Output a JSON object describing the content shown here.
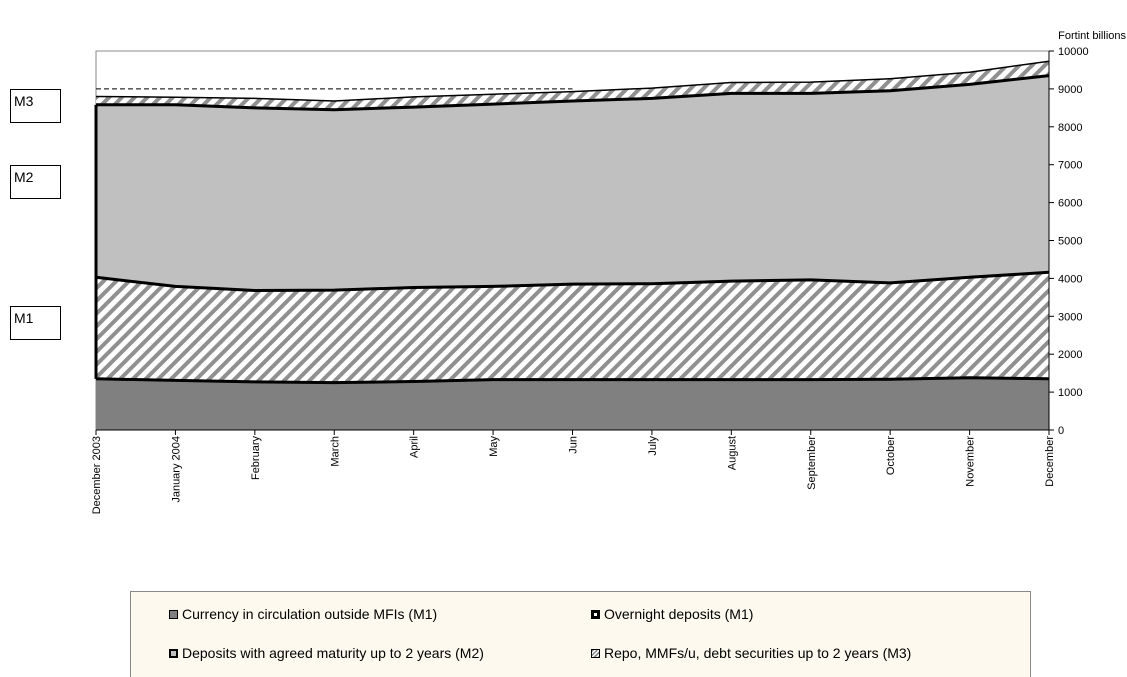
{
  "chart_data": {
    "type": "area",
    "unit_label": "Fortint billions",
    "categories": [
      "December 2003",
      "January 2004",
      "February",
      "March",
      "April",
      "May",
      "Jun",
      "July",
      "August",
      "September",
      "October",
      "November",
      "December"
    ],
    "series": [
      {
        "name": "Currency in circulation outside MFIs (M1)",
        "values": [
          1350,
          1310,
          1270,
          1250,
          1280,
          1330,
          1330,
          1330,
          1330,
          1330,
          1340,
          1380,
          1350
        ]
      },
      {
        "name": "Overnight deposits (M1)",
        "values": [
          2680,
          2480,
          2410,
          2440,
          2480,
          2460,
          2520,
          2530,
          2600,
          2630,
          2540,
          2650,
          2810
        ]
      },
      {
        "name": "Deposits with agreed maturity up to 2 years (M2)",
        "values": [
          4550,
          4790,
          4820,
          4760,
          4760,
          4810,
          4830,
          4890,
          4950,
          4920,
          5070,
          5090,
          5190
        ]
      },
      {
        "name": "Repo, MMFs/u, debt securities up to 2 years (M3)",
        "values": [
          220,
          200,
          250,
          230,
          270,
          260,
          250,
          270,
          290,
          300,
          320,
          320,
          380
        ]
      }
    ],
    "m1_total": [
      4030,
      3790,
      3680,
      3690,
      3760,
      3790,
      3850,
      3860,
      3930,
      3960,
      3880,
      4030,
      4160
    ],
    "m2_total": [
      8580,
      8580,
      8500,
      8450,
      8520,
      8600,
      8680,
      8750,
      8880,
      8880,
      8950,
      9120,
      9350
    ],
    "m3_total": [
      8800,
      8780,
      8750,
      8680,
      8790,
      8860,
      8930,
      9020,
      9170,
      9180,
      9270,
      9440,
      9730
    ],
    "reference_line_value": 9000,
    "ylim": [
      0,
      10000
    ],
    "y_ticks": [
      0,
      1000,
      2000,
      3000,
      4000,
      5000,
      6000,
      7000,
      8000,
      9000,
      10000
    ],
    "y_axis_side": "right",
    "stacked": true,
    "legend_placement": "bottom",
    "grid": false,
    "band_labels": [
      "M3",
      "M2",
      "M1"
    ],
    "colors": {
      "currency": "#808080",
      "deposits": "#c0c0c0",
      "hatch": "#888888",
      "line": "#000000",
      "legend_bg": "#fdf9ee"
    }
  }
}
